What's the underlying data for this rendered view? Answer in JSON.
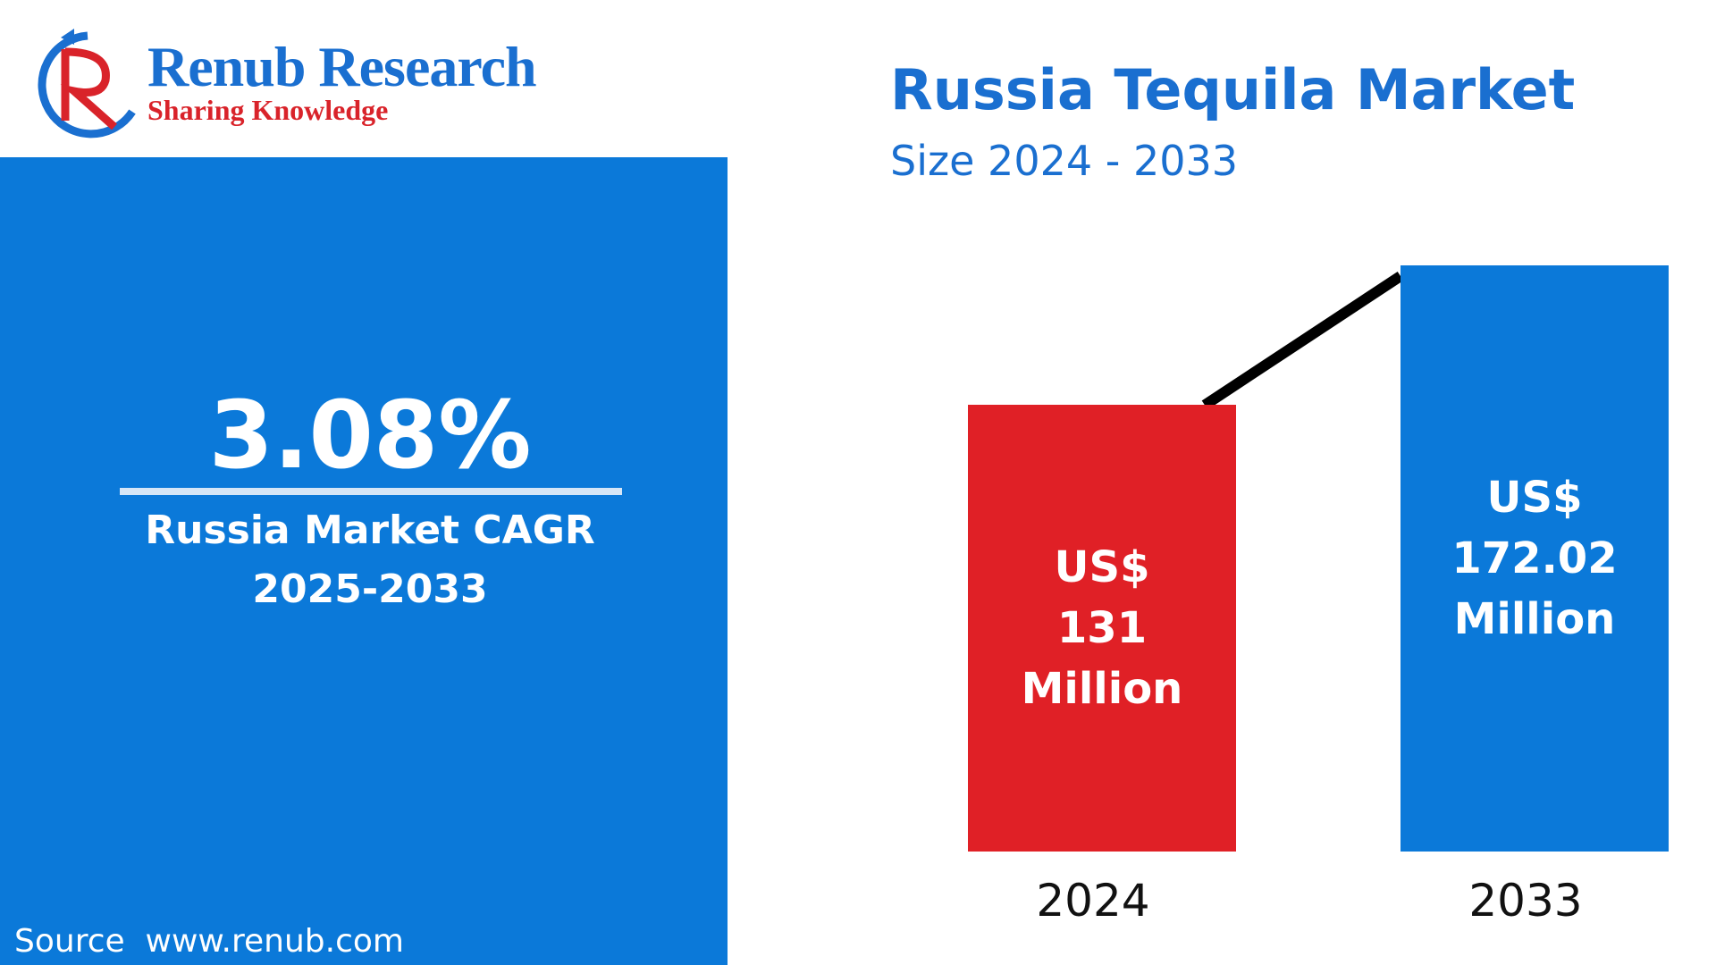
{
  "logo": {
    "name": "Renub Research",
    "tagline": "Sharing Knowledge"
  },
  "panel": {
    "cagr": "3.08%",
    "caption": "Russia Market CAGR",
    "period": "2025-2033",
    "source": "Source  www.renub.com"
  },
  "chart_data": {
    "type": "bar",
    "title": "Russia Tequila Market",
    "subtitle": "Size 2024 - 2033",
    "categories": [
      "2024",
      "2033"
    ],
    "values": [
      131,
      172.02
    ],
    "value_labels": [
      "US$ 131 Million",
      "US$ 172.02 Million"
    ],
    "colors": [
      "#e02026",
      "#0b79d9"
    ],
    "connector_color": "#000000"
  }
}
